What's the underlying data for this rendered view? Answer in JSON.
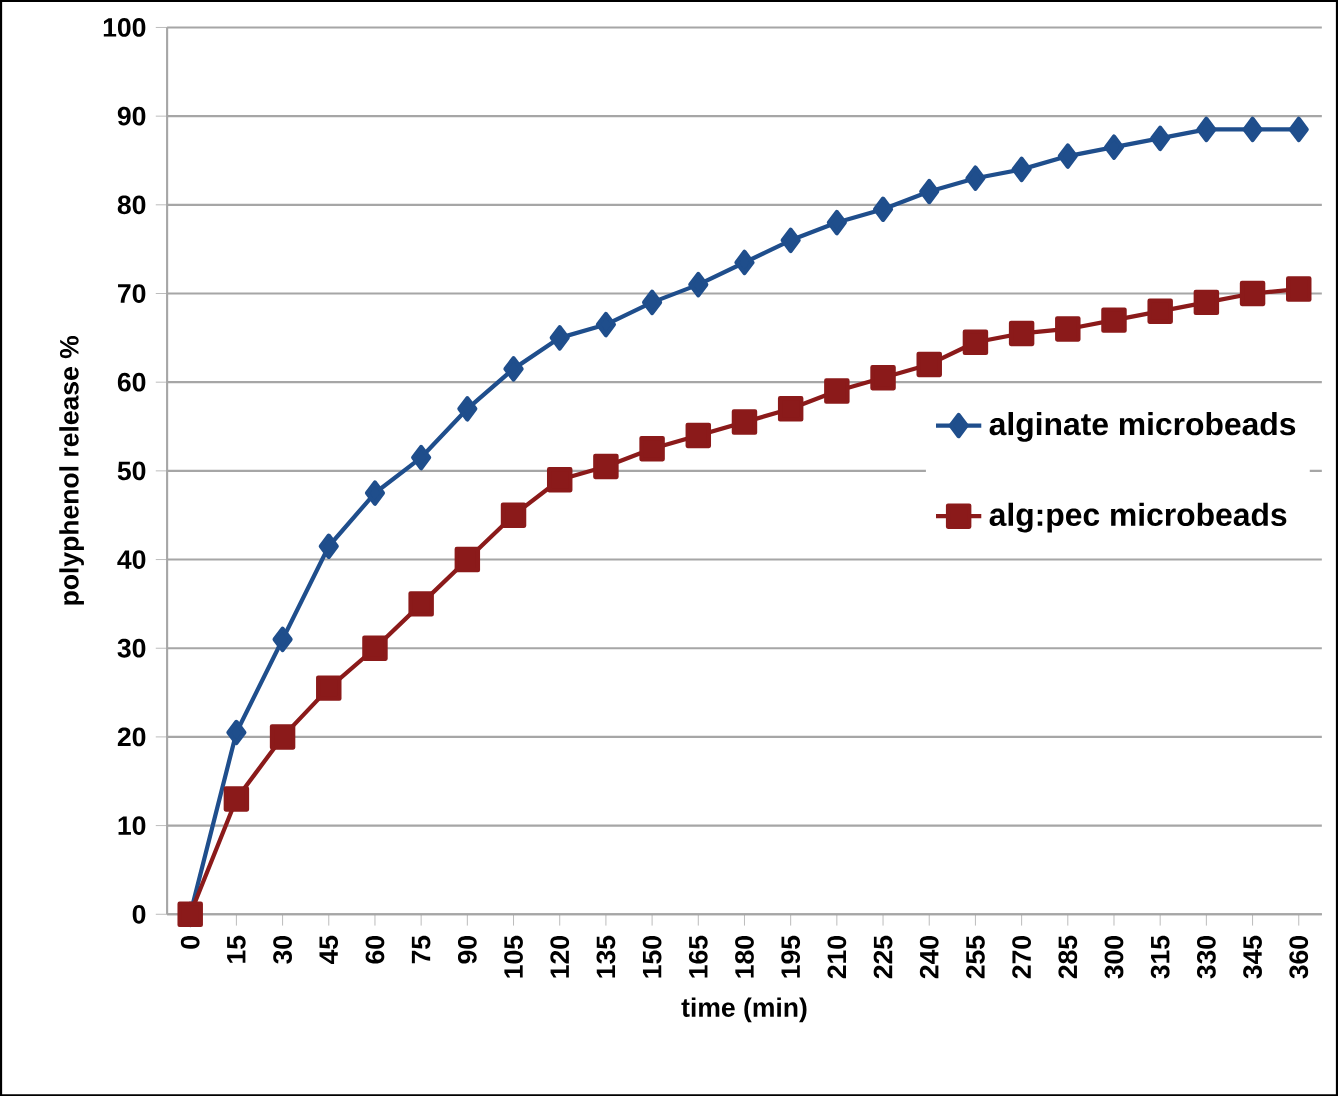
{
  "chart_data": {
    "type": "line",
    "xlabel": "time (min)",
    "ylabel": "polyphenol release %",
    "categories": [
      "0",
      "15",
      "30",
      "45",
      "60",
      "75",
      "90",
      "105",
      "120",
      "135",
      "150",
      "165",
      "180",
      "195",
      "210",
      "225",
      "240",
      "255",
      "270",
      "285",
      "300",
      "315",
      "330",
      "345",
      "360"
    ],
    "series": [
      {
        "name": "alginate microbeads",
        "color": "#1f4e8c",
        "marker": "diamond",
        "values": [
          0,
          20.5,
          31,
          41.5,
          47.5,
          51.5,
          57,
          61.5,
          65,
          66.5,
          69,
          71,
          73.5,
          76,
          78,
          79.5,
          81.5,
          83,
          84,
          85.5,
          86.5,
          87.5,
          88.5,
          88.5,
          88.5
        ]
      },
      {
        "name": "alg:pec microbeads",
        "color": "#8b1a1a",
        "marker": "square",
        "values": [
          0,
          13,
          20,
          25.5,
          30,
          35,
          40,
          45,
          49,
          50.5,
          52.5,
          54,
          55.5,
          57,
          59,
          60.5,
          62,
          64.5,
          65.5,
          66,
          67,
          68,
          69,
          70,
          70.5
        ]
      }
    ],
    "ylim": [
      0,
      100
    ],
    "yticks": [
      0,
      10,
      20,
      30,
      40,
      50,
      60,
      70,
      80,
      90,
      100
    ],
    "grid": "y",
    "legend": "right",
    "line_style": "solid"
  }
}
